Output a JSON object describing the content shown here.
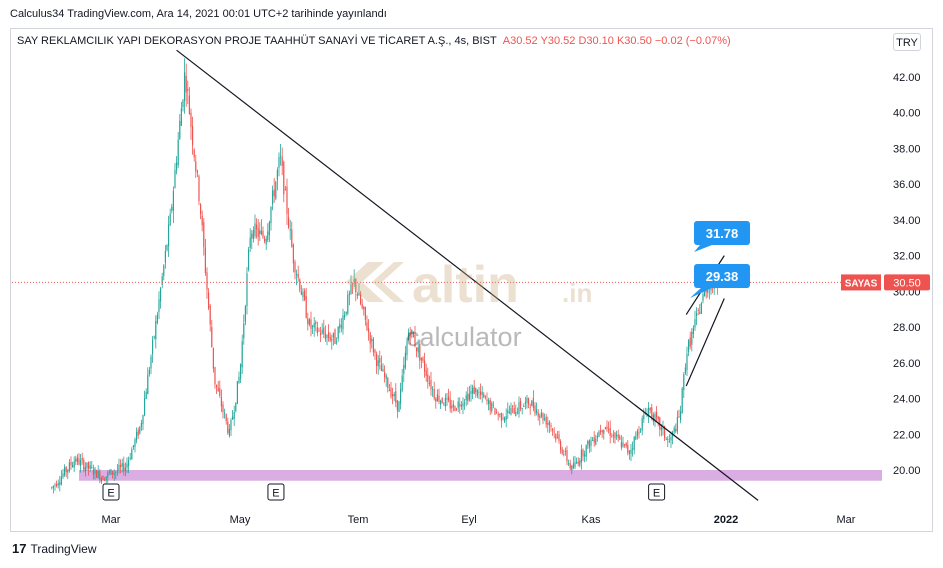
{
  "header": {
    "publish_text": "Calculus34 TradingView.com, Ara 14, 2021 00:01 UTC+2 tarihinde yayınlandı"
  },
  "legend": {
    "symbol_text": "SAY REKLAMCILIK YAPI DEKORASYON PROJE TAAHHÜT SANAYİ VE TİCARET A.Ş., 4s, BIST",
    "ohlc_text": "A30.52  Y30.52  D30.10  K30.50  −0.02 (−0.07%)"
  },
  "currency_button": "TRY",
  "watermark": {
    "brand": "altin",
    "suffix": ".in",
    "sub": "calculator"
  },
  "footer": {
    "logo_glyph": "17",
    "logo_text": "TradingView"
  },
  "colors": {
    "up": "#26a69a",
    "down": "#ef5350",
    "callout": "#2196f3",
    "price_tag": "#ef5350",
    "support_zone": "#ce93d8"
  },
  "chart_data": {
    "type": "candlestick",
    "x_tick_labels": [
      "Mar",
      "May",
      "Tem",
      "Eyl",
      "Kas",
      "2022",
      "Mar"
    ],
    "y_ticks": [
      20.0,
      22.0,
      24.0,
      26.0,
      28.0,
      30.0,
      32.0,
      34.0,
      36.0,
      38.0,
      40.0,
      42.0
    ],
    "y_tick_labels": [
      "20.00",
      "22.00",
      "24.00",
      "26.00",
      "28.00",
      "30.00",
      "32.00",
      "34.00",
      "36.00",
      "38.00",
      "40.00",
      "42.00"
    ],
    "ylim": [
      18.0,
      44.5
    ],
    "grid": false,
    "price_path": [
      {
        "date": "2021-02-01",
        "price": 19.0
      },
      {
        "date": "2021-02-12",
        "price": 20.6
      },
      {
        "date": "2021-02-25",
        "price": 19.6
      },
      {
        "date": "2021-03-08",
        "price": 20.2
      },
      {
        "date": "2021-03-15",
        "price": 22.5
      },
      {
        "date": "2021-03-22",
        "price": 28.0
      },
      {
        "date": "2021-03-29",
        "price": 34.0
      },
      {
        "date": "2021-04-05",
        "price": 42.3
      },
      {
        "date": "2021-04-12",
        "price": 35.0
      },
      {
        "date": "2021-04-19",
        "price": 25.0
      },
      {
        "date": "2021-04-26",
        "price": 22.0
      },
      {
        "date": "2021-05-01",
        "price": 25.5
      },
      {
        "date": "2021-05-06",
        "price": 33.5
      },
      {
        "date": "2021-05-13",
        "price": 33.0
      },
      {
        "date": "2021-05-20",
        "price": 37.5
      },
      {
        "date": "2021-05-26",
        "price": 32.0
      },
      {
        "date": "2021-06-03",
        "price": 28.0
      },
      {
        "date": "2021-06-15",
        "price": 27.3
      },
      {
        "date": "2021-06-24",
        "price": 30.5
      },
      {
        "date": "2021-07-05",
        "price": 26.0
      },
      {
        "date": "2021-07-15",
        "price": 23.5
      },
      {
        "date": "2021-07-20",
        "price": 28.0
      },
      {
        "date": "2021-08-01",
        "price": 24.2
      },
      {
        "date": "2021-08-10",
        "price": 23.5
      },
      {
        "date": "2021-08-20",
        "price": 24.5
      },
      {
        "date": "2021-09-01",
        "price": 23.0
      },
      {
        "date": "2021-09-15",
        "price": 23.8
      },
      {
        "date": "2021-09-25",
        "price": 22.5
      },
      {
        "date": "2021-10-05",
        "price": 20.0
      },
      {
        "date": "2021-10-10",
        "price": 21.0
      },
      {
        "date": "2021-10-20",
        "price": 22.5
      },
      {
        "date": "2021-11-01",
        "price": 21.0
      },
      {
        "date": "2021-11-10",
        "price": 23.5
      },
      {
        "date": "2021-11-20",
        "price": 21.5
      },
      {
        "date": "2021-11-25",
        "price": 23.0
      },
      {
        "date": "2021-11-28",
        "price": 26.5
      },
      {
        "date": "2021-12-03",
        "price": 28.5
      },
      {
        "date": "2021-12-08",
        "price": 30.5
      },
      {
        "date": "2021-12-13",
        "price": 30.5
      }
    ],
    "trendline": {
      "from": {
        "date": "2021-04-01",
        "price": 43.5
      },
      "to": {
        "date": "2022-01-01",
        "price": 18.3
      }
    },
    "channel": {
      "upper": {
        "from": {
          "date": "2021-11-28",
          "price": 28.7
        },
        "to": {
          "date": "2021-12-16",
          "price": 32.0
        }
      },
      "lower": {
        "from": {
          "date": "2021-11-28",
          "price": 24.7
        },
        "to": {
          "date": "2021-12-16",
          "price": 29.6
        }
      }
    },
    "support_zone": [
      19.4,
      20.0
    ],
    "earnings_marker_label": "E",
    "earnings_marker_dates": [
      "2021-03-01",
      "2021-05-18",
      "2021-11-14"
    ],
    "callouts": [
      {
        "value": "31.78"
      },
      {
        "value": "29.38"
      }
    ],
    "price_tag": {
      "symbol": "SAYAS",
      "value": "30.50",
      "price": 30.5
    }
  }
}
